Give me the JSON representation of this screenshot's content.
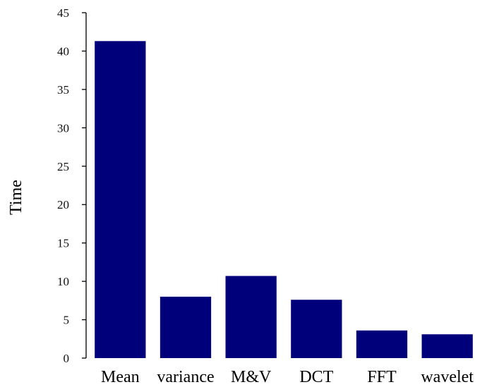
{
  "chart_data": {
    "type": "bar",
    "title": "",
    "xlabel": "",
    "ylabel": "Time",
    "ylim": [
      0,
      45
    ],
    "yticks": [
      0,
      5,
      10,
      15,
      20,
      25,
      30,
      35,
      40,
      45
    ],
    "categories": [
      "Mean",
      "variance",
      "M&V",
      "DCT",
      "FFT",
      "wavelet"
    ],
    "values": [
      41.3,
      8.0,
      10.7,
      7.6,
      3.6,
      3.1
    ],
    "grid": false,
    "legend": "none",
    "bar_color": "#00007a"
  }
}
